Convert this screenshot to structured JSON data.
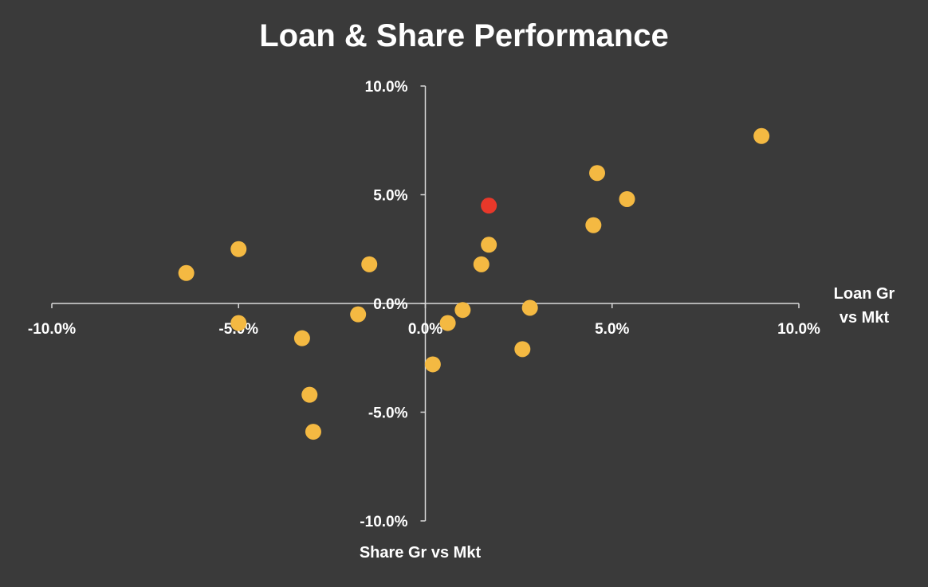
{
  "chart_data": {
    "type": "scatter",
    "title": "Loan & Share Performance",
    "xlabel": "Share Gr vs Mkt",
    "ylabel": "Loan Gr vs Mkt",
    "xlim": [
      -0.1,
      0.1
    ],
    "ylim": [
      -0.1,
      0.1
    ],
    "x_ticks": [
      -0.1,
      -0.05,
      0.0,
      0.05,
      0.1
    ],
    "y_ticks": [
      -0.1,
      -0.05,
      0.0,
      0.05,
      0.1
    ],
    "x_tick_labels": [
      "-10.0%",
      "-5.0%",
      "0.0%",
      "5.0%",
      "10.0%"
    ],
    "y_tick_labels": [
      "-10.0%",
      "-5.0%",
      "0.0%",
      "5.0%",
      "10.0%"
    ],
    "grid": false,
    "legend": "none",
    "colors": {
      "background": "#3a3a3a",
      "axis": "#d9d9d9",
      "text": "#ffffff",
      "point": "#f4b942",
      "highlight": "#e8382a"
    },
    "series": [
      {
        "points": [
          {
            "x": -0.064,
            "y": 0.014
          },
          {
            "x": -0.05,
            "y": 0.025
          },
          {
            "x": -0.05,
            "y": -0.009
          },
          {
            "x": -0.033,
            "y": -0.016
          },
          {
            "x": -0.031,
            "y": -0.042
          },
          {
            "x": -0.03,
            "y": -0.059
          },
          {
            "x": -0.018,
            "y": -0.005
          },
          {
            "x": -0.015,
            "y": 0.018
          },
          {
            "x": 0.002,
            "y": -0.028
          },
          {
            "x": 0.006,
            "y": -0.009
          },
          {
            "x": 0.01,
            "y": -0.003
          },
          {
            "x": 0.015,
            "y": 0.018
          },
          {
            "x": 0.017,
            "y": 0.027
          },
          {
            "x": 0.026,
            "y": -0.021
          },
          {
            "x": 0.028,
            "y": -0.002
          },
          {
            "x": 0.045,
            "y": 0.036
          },
          {
            "x": 0.046,
            "y": 0.06
          },
          {
            "x": 0.054,
            "y": 0.048
          },
          {
            "x": 0.09,
            "y": 0.077
          }
        ]
      },
      {
        "highlight": true,
        "points": [
          {
            "x": 0.017,
            "y": 0.045
          }
        ]
      }
    ]
  }
}
